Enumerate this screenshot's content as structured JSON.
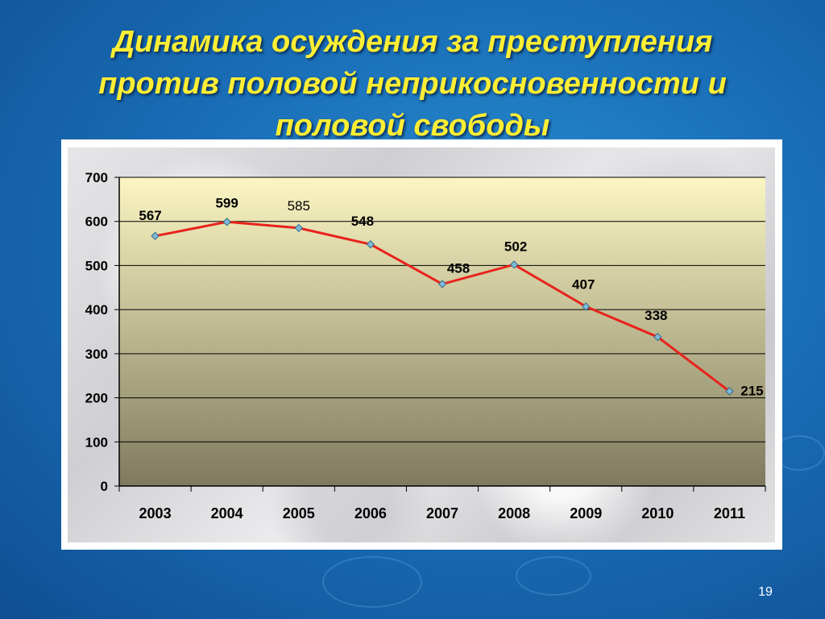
{
  "title_lines": [
    "Динамика осуждения за преступления",
    "против половой неприкосновенности и",
    "половой свободы"
  ],
  "page_number": "19",
  "colors": {
    "line": "#e8231c",
    "marker": "#7fb9d8",
    "title": "#ffee33",
    "plot_top": "#fbf6c2",
    "plot_bottom": "#7f7a5f"
  },
  "chart_data": {
    "type": "line",
    "categories": [
      "2003",
      "2004",
      "2005",
      "2006",
      "2007",
      "2008",
      "2009",
      "2010",
      "2011"
    ],
    "values": [
      567,
      599,
      585,
      548,
      458,
      502,
      407,
      338,
      215
    ],
    "data_labels": [
      "567",
      "599",
      "585",
      "548",
      "458",
      "502",
      "407",
      "338",
      "215"
    ],
    "ylim": [
      0,
      700
    ],
    "yticks": [
      0,
      100,
      200,
      300,
      400,
      500,
      600,
      700
    ],
    "grid": true,
    "legend": "none"
  }
}
